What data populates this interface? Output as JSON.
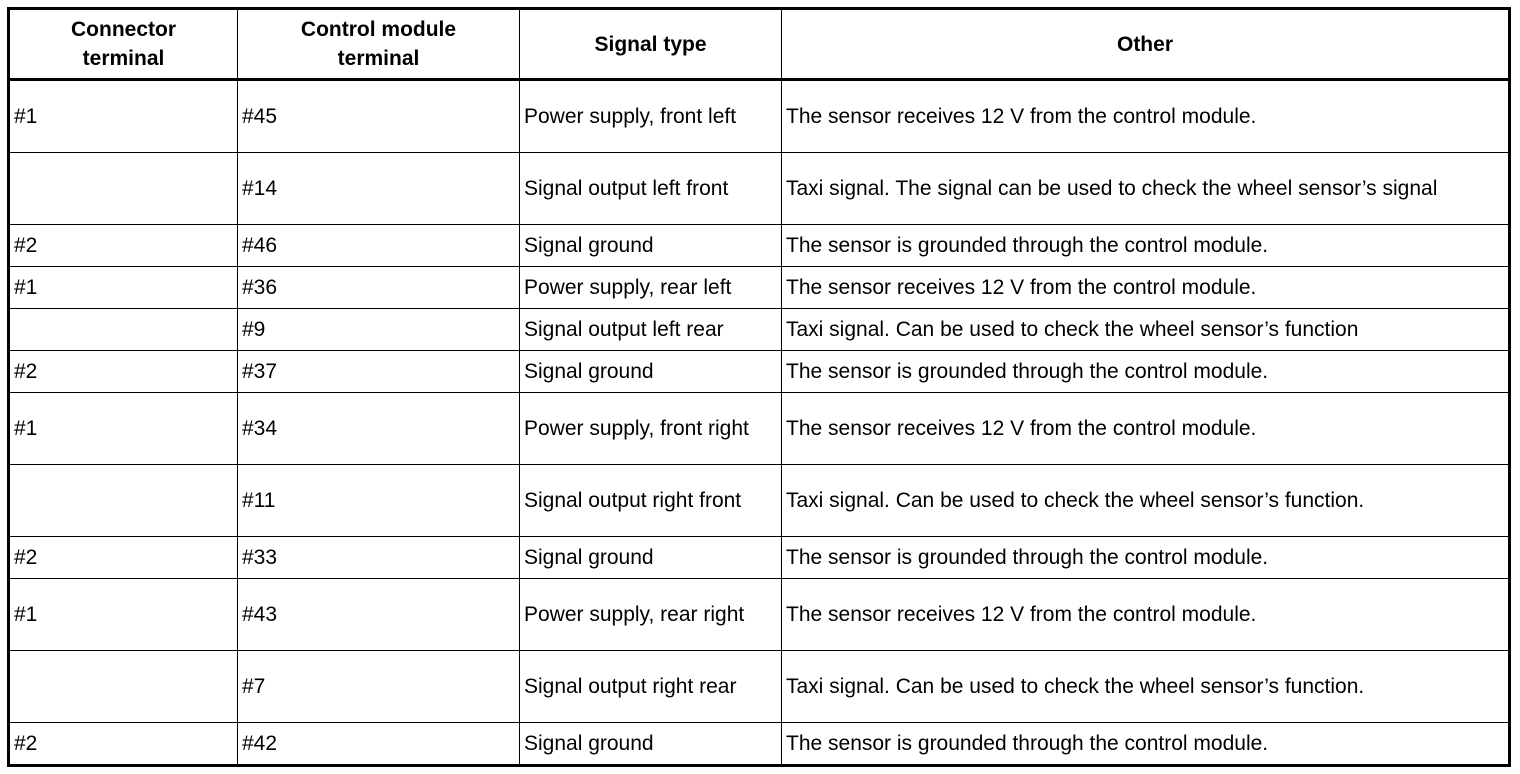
{
  "table": {
    "headers": [
      "Connector terminal",
      "Control module terminal",
      "Signal type",
      "Other"
    ],
    "rows": [
      [
        "#1",
        "#45",
        "Power supply, front left",
        "The sensor receives 12 V from the control module."
      ],
      [
        "",
        "#14",
        "Signal output left front",
        "Taxi signal. The signal can be used to check the wheel sensor’s signal"
      ],
      [
        "#2",
        "#46",
        "Signal ground",
        "The sensor is grounded through the control module."
      ],
      [
        "#1",
        "#36",
        "Power supply, rear left",
        "The sensor receives 12 V from the control module."
      ],
      [
        "",
        "#9",
        "Signal output left rear",
        "Taxi signal. Can be used to check the wheel sensor’s function"
      ],
      [
        "#2",
        "#37",
        "Signal ground",
        "The sensor is grounded through the control module."
      ],
      [
        "#1",
        "#34",
        "Power supply, front right",
        "The sensor receives 12 V from the control module."
      ],
      [
        "",
        "#11",
        "Signal output right front",
        "Taxi signal. Can be used to check the wheel sensor’s function."
      ],
      [
        "#2",
        "#33",
        "Signal ground",
        "The sensor is grounded through the control module."
      ],
      [
        "#1",
        "#43",
        "Power supply, rear right",
        "The sensor receives 12 V from the control module."
      ],
      [
        "",
        "#7",
        "Signal output right rear",
        "Taxi signal. Can be used to check the wheel sensor’s function."
      ],
      [
        "#2",
        "#42",
        "Signal ground",
        "The sensor is grounded through the control module."
      ]
    ]
  }
}
